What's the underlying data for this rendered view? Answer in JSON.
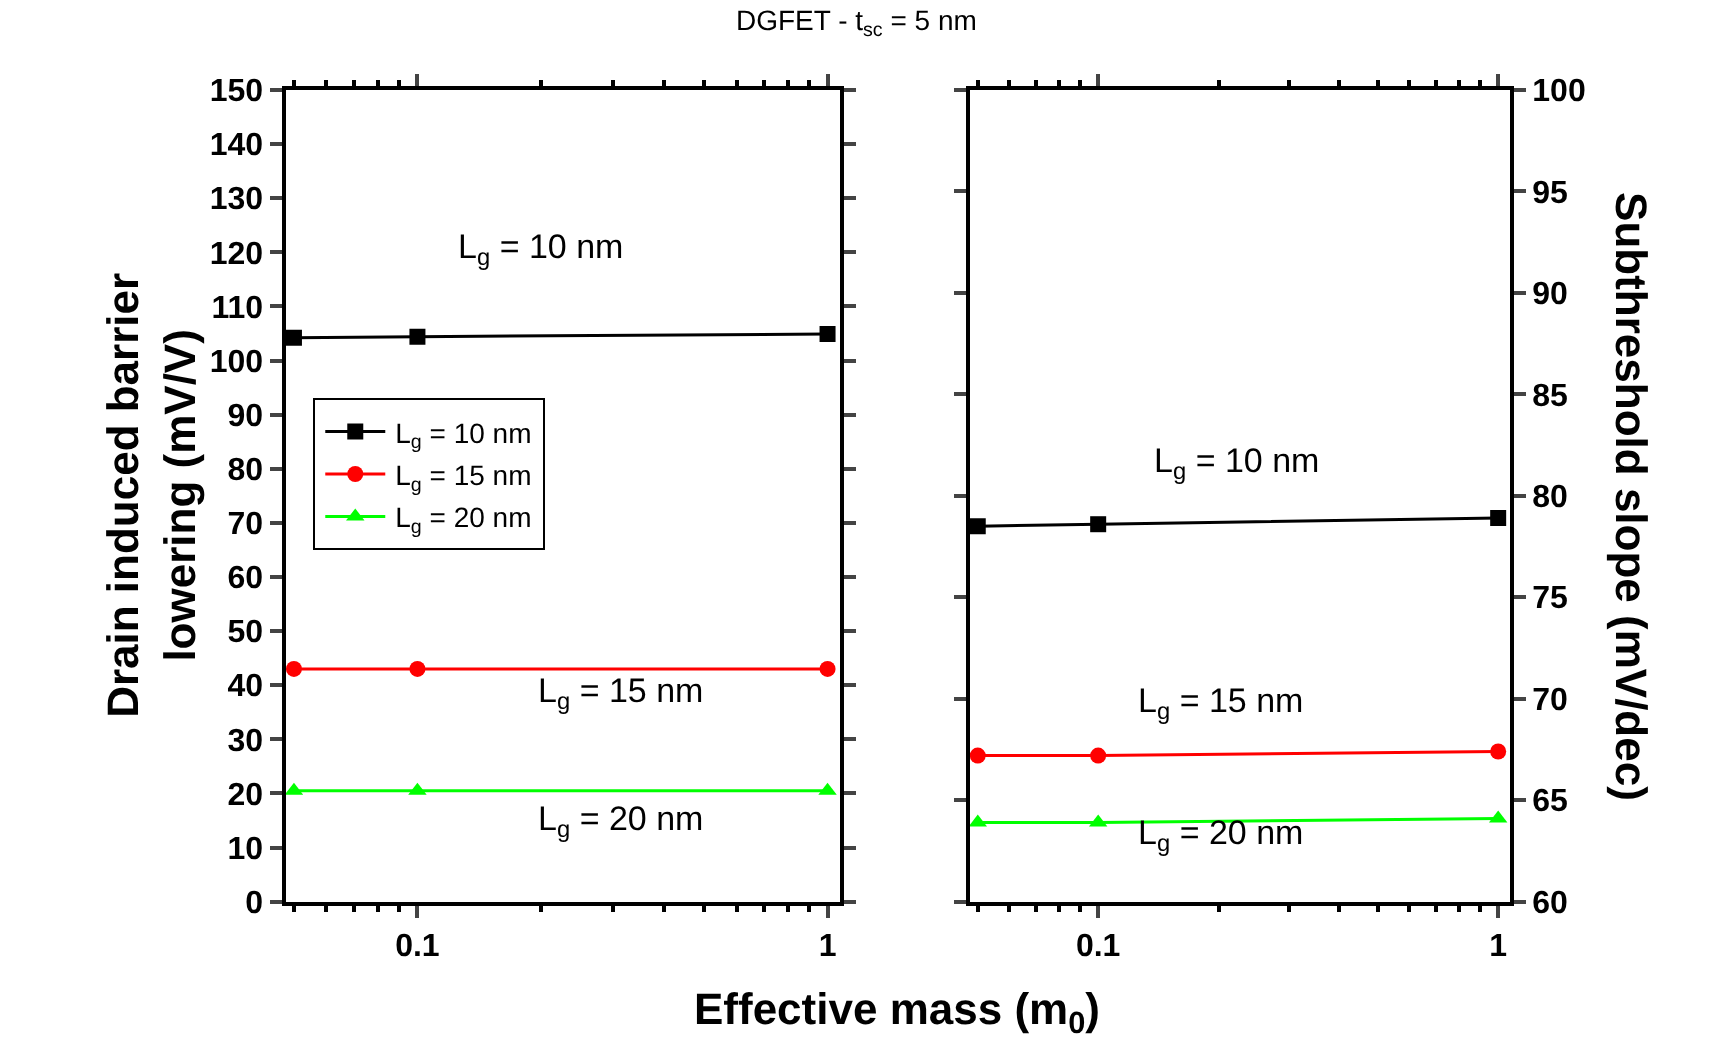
{
  "chart_data": [
    {
      "type": "line",
      "title": "DGFET - t$_{sc}$ = 5 nm",
      "xlabel": "Effective mass (m$_{0}$)",
      "ylabel": "Drain induced barrier\nlowering (mV/V)",
      "x": [
        0.05,
        0.1,
        1
      ],
      "series": [
        {
          "name": "L$_{g}$ = 10 nm",
          "color": "#000000",
          "marker": "square",
          "values": [
            104.2,
            104.4,
            104.9
          ]
        },
        {
          "name": "L$_{g}$ = 15 nm",
          "color": "#ff0000",
          "marker": "circle",
          "values": [
            43,
            43,
            43
          ]
        },
        {
          "name": "L$_{g}$ = 20 nm",
          "color": "#00ff00",
          "marker": "triangle",
          "values": [
            20.5,
            20.5,
            20.5
          ]
        }
      ],
      "annotations": [
        "L$_{g}$ = 10 nm",
        "L$_{g}$ = 15 nm",
        "L$_{g}$ = 20 nm"
      ],
      "xlim": [
        0.0477,
        1.07
      ],
      "log": "x",
      "xticks": [
        {
          "value": 0.05,
          "label": null
        },
        {
          "value": 0.06,
          "label": null
        },
        {
          "value": 0.07,
          "label": null
        },
        {
          "value": 0.08,
          "label": null
        },
        {
          "value": 0.09,
          "label": null
        },
        0.1,
        {
          "value": 0.2,
          "label": null
        },
        {
          "value": 0.3,
          "label": null
        },
        {
          "value": 0.4,
          "label": null
        },
        {
          "value": 0.5,
          "label": null
        },
        {
          "value": 0.6,
          "label": null
        },
        {
          "value": 0.7,
          "label": null
        },
        {
          "value": 0.8,
          "label": null
        },
        {
          "value": 0.9,
          "label": null
        },
        1
      ],
      "ylim": [
        0,
        150
      ],
      "yticks": [
        0,
        10,
        20,
        30,
        40,
        50,
        60,
        70,
        80,
        90,
        100,
        110,
        120,
        130,
        140,
        150
      ],
      "legend": "top left",
      "line_style": "solid"
    },
    {
      "type": "line",
      "y2label": "Subthreshold slope (mV/dec)",
      "x": [
        0.05,
        0.1,
        1
      ],
      "series": [
        {
          "color": "#000000",
          "marker": "square",
          "values": [
            78.5,
            78.6,
            78.9
          ]
        },
        {
          "color": "#ff0000",
          "marker": "circle",
          "values": [
            67.2,
            67.2,
            67.4
          ]
        },
        {
          "color": "#00ff00",
          "marker": "triangle",
          "values": [
            63.9,
            63.9,
            64.1
          ]
        }
      ],
      "annotations": [
        "L$_{g}$ = 10 nm",
        "L$_{g}$ = 15 nm",
        "L$_{g}$ = 20 nm"
      ],
      "xlim": [
        0.0477,
        1.07
      ],
      "log": "x",
      "xticks": [
        {
          "value": 0.05,
          "label": null
        },
        {
          "value": 0.06,
          "label": null
        },
        {
          "value": 0.07,
          "label": null
        },
        {
          "value": 0.08,
          "label": null
        },
        {
          "value": 0.09,
          "label": null
        },
        0.1,
        {
          "value": 0.2,
          "label": null
        },
        {
          "value": 0.3,
          "label": null
        },
        {
          "value": 0.4,
          "label": null
        },
        {
          "value": 0.5,
          "label": null
        },
        {
          "value": 0.6,
          "label": null
        },
        {
          "value": 0.7,
          "label": null
        },
        {
          "value": 0.8,
          "label": null
        },
        {
          "value": 0.9,
          "label": null
        },
        1
      ],
      "ylim": [
        60,
        100
      ],
      "yticks": [
        60,
        65,
        70,
        75,
        80,
        85,
        90,
        95,
        100
      ],
      "legend": false,
      "line_style": "solid"
    }
  ]
}
